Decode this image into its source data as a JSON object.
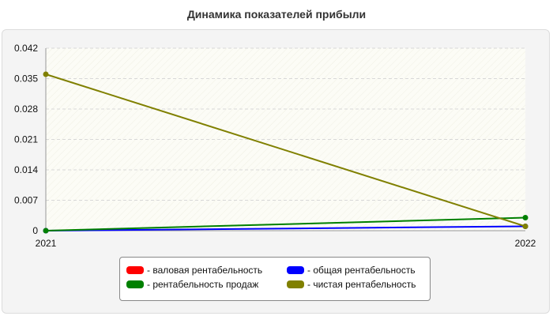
{
  "chart_data": {
    "type": "line",
    "title": "Динамика показателей прибыли",
    "x": [
      "2021",
      "2022"
    ],
    "ylim": [
      0,
      0.042
    ],
    "yticks": [
      "0",
      "0.007",
      "0.014",
      "0.021",
      "0.028",
      "0.035",
      "0.042"
    ],
    "grid": true,
    "legend_position": "bottom",
    "series": [
      {
        "name": "- валовая рентабельность",
        "color": "#ff0000",
        "values": [
          null,
          null
        ]
      },
      {
        "name": "- общая рентабельность",
        "color": "#0000ff",
        "values": [
          0.0,
          0.001
        ]
      },
      {
        "name": "- рентабельность продаж",
        "color": "#008000",
        "values": [
          0.0,
          0.003
        ]
      },
      {
        "name": "- чистая рентабельность",
        "color": "#808000",
        "values": [
          0.036,
          0.001
        ]
      }
    ]
  }
}
